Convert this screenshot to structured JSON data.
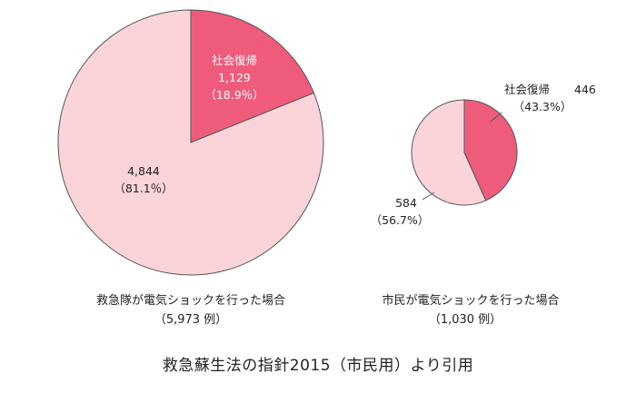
{
  "chart_data": [
    {
      "type": "pie",
      "caption": "救急隊が電気ショックを行った場合",
      "caption_count": "（5,973 例）",
      "total": 5973,
      "slices": [
        {
          "name": "社会復帰",
          "value": 1129,
          "percent": 18.9,
          "value_label": "1,129",
          "percent_label": "（18.9％）",
          "color": "#ef5b7b"
        },
        {
          "name": "",
          "value": 4844,
          "percent": 81.1,
          "value_label": "4,844",
          "percent_label": "（81.1％）",
          "color": "#fad4d8"
        }
      ]
    },
    {
      "type": "pie",
      "caption": "市民が電気ショックを行った場合",
      "caption_count": "（1,030 例）",
      "total": 1030,
      "slices": [
        {
          "name": "社会復帰",
          "value": 446,
          "percent": 43.3,
          "value_label": "446",
          "percent_label": "（43.3%）",
          "color": "#ef5b7b"
        },
        {
          "name": "",
          "value": 584,
          "percent": 56.7,
          "value_label": "584",
          "percent_label": "（56.7%）",
          "color": "#fad4d8"
        }
      ]
    }
  ],
  "footer": {
    "source": "救急蘇生法の指針2015（市民用）より引用"
  },
  "colors": {
    "recovery": "#ef5b7b",
    "other": "#fad4d8",
    "stroke": "#555555"
  }
}
